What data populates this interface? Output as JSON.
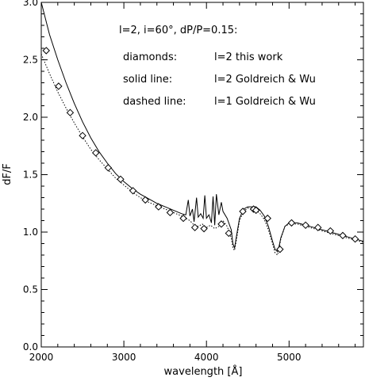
{
  "chart_data": {
    "type": "line",
    "xlabel": "wavelength [Å]",
    "ylabel": "dF/F",
    "xlim": [
      2000,
      5900
    ],
    "ylim": [
      0.0,
      3.0
    ],
    "x_ticks": [
      2000,
      3000,
      4000,
      5000
    ],
    "y_ticks": [
      0.0,
      0.5,
      1.0,
      1.5,
      2.0,
      2.5,
      3.0
    ],
    "y_tick_labels": [
      "0.0",
      "0.5",
      "1.0",
      "1.5",
      "2.0",
      "2.5",
      "3.0"
    ],
    "annotations": {
      "header": "l=2, i=60°, dP/P=0.15:",
      "diamonds_key": "diamonds:",
      "diamonds_desc": "l=2 this work",
      "solid_key": "solid line:",
      "solid_desc": "l=2 Goldreich & Wu",
      "dashed_key": "dashed line:",
      "dashed_desc": "l=1 Goldreich & Wu"
    },
    "series": [
      {
        "style": "solid",
        "x": [
          2000,
          2100,
          2200,
          2300,
          2400,
          2500,
          2600,
          2700,
          2800,
          2900,
          3000,
          3100,
          3200,
          3300,
          3400,
          3500,
          3600,
          3700,
          3750,
          3780,
          3800,
          3830,
          3850,
          3880,
          3900,
          3930,
          3960,
          3980,
          4000,
          4030,
          4060,
          4080,
          4100,
          4120,
          4150,
          4180,
          4200,
          4250,
          4300,
          4320,
          4340,
          4360,
          4400,
          4450,
          4500,
          4550,
          4600,
          4650,
          4700,
          4750,
          4800,
          4830,
          4860,
          4880,
          4900,
          4950,
          5000,
          5100,
          5200,
          5300,
          5400,
          5500,
          5600,
          5700,
          5800,
          5900
        ],
        "y": [
          3.0,
          2.72,
          2.5,
          2.3,
          2.12,
          1.96,
          1.82,
          1.7,
          1.6,
          1.51,
          1.44,
          1.38,
          1.33,
          1.29,
          1.25,
          1.22,
          1.19,
          1.16,
          1.15,
          1.28,
          1.14,
          1.2,
          1.09,
          1.3,
          1.13,
          1.16,
          1.12,
          1.32,
          1.12,
          1.15,
          1.08,
          1.31,
          1.06,
          1.33,
          1.15,
          1.26,
          1.18,
          1.12,
          1.02,
          0.9,
          0.86,
          0.95,
          1.12,
          1.2,
          1.22,
          1.22,
          1.22,
          1.19,
          1.14,
          1.05,
          0.92,
          0.85,
          0.83,
          0.88,
          0.95,
          1.05,
          1.08,
          1.08,
          1.06,
          1.04,
          1.02,
          1.0,
          0.98,
          0.96,
          0.94,
          0.92
        ]
      },
      {
        "style": "dotted",
        "x": [
          2000,
          2100,
          2200,
          2300,
          2400,
          2500,
          2600,
          2700,
          2800,
          2900,
          3000,
          3100,
          3200,
          3300,
          3400,
          3500,
          3600,
          3700,
          3800,
          3850,
          3900,
          3950,
          4000,
          4050,
          4100,
          4150,
          4200,
          4250,
          4300,
          4320,
          4340,
          4360,
          4400,
          4450,
          4500,
          4550,
          4600,
          4650,
          4700,
          4750,
          4800,
          4830,
          4860,
          4880,
          4900,
          4950,
          5000,
          5100,
          5200,
          5300,
          5400,
          5500,
          5600,
          5700,
          5800,
          5900
        ],
        "y": [
          2.55,
          2.38,
          2.22,
          2.08,
          1.95,
          1.83,
          1.72,
          1.63,
          1.55,
          1.47,
          1.41,
          1.35,
          1.3,
          1.26,
          1.23,
          1.2,
          1.17,
          1.14,
          1.1,
          1.06,
          1.05,
          1.07,
          1.04,
          1.06,
          1.03,
          1.05,
          1.1,
          1.05,
          0.95,
          0.86,
          0.84,
          0.92,
          1.1,
          1.18,
          1.21,
          1.2,
          1.19,
          1.16,
          1.11,
          1.02,
          0.9,
          0.82,
          0.8,
          0.86,
          0.94,
          1.05,
          1.07,
          1.07,
          1.05,
          1.03,
          1.01,
          0.99,
          0.97,
          0.95,
          0.93,
          0.91
        ]
      },
      {
        "style": "diamond",
        "x": [
          2060,
          2210,
          2350,
          2500,
          2660,
          2810,
          2960,
          3110,
          3260,
          3420,
          3560,
          3720,
          3860,
          3970,
          4180,
          4270,
          4440,
          4570,
          4600,
          4740,
          4890,
          5030,
          5200,
          5350,
          5500,
          5650,
          5800
        ],
        "y": [
          2.58,
          2.27,
          2.04,
          1.84,
          1.69,
          1.56,
          1.46,
          1.36,
          1.28,
          1.22,
          1.17,
          1.12,
          1.04,
          1.03,
          1.07,
          0.99,
          1.18,
          1.2,
          1.19,
          1.12,
          0.85,
          1.08,
          1.06,
          1.04,
          1.01,
          0.97,
          0.94
        ]
      }
    ]
  }
}
